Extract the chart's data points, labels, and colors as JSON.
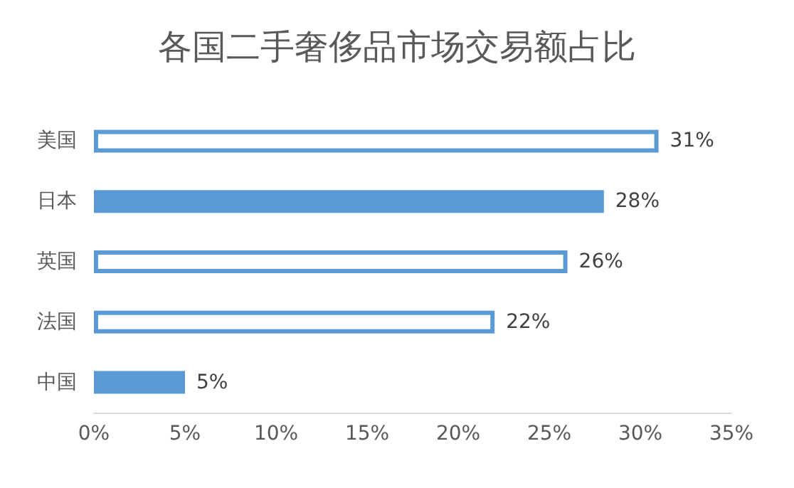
{
  "chart_data": {
    "type": "bar",
    "orientation": "horizontal",
    "title": "各国二手奢侈品市场交易额占比",
    "categories": [
      "美国",
      "日本",
      "英国",
      "法国",
      "中国"
    ],
    "values": [
      31,
      28,
      26,
      22,
      5
    ],
    "value_labels": [
      "31%",
      "28%",
      "26%",
      "22%",
      "5%"
    ],
    "color": "#5b9bd5",
    "colors": [
      "#ffffff",
      "#5b9bd5",
      "#ffffff",
      "#ffffff",
      "#5b9bd5"
    ],
    "xlim": [
      0,
      35
    ],
    "xticks": [
      {
        "value": 0,
        "label": "0%"
      },
      {
        "value": 5,
        "label": "5%"
      },
      {
        "value": 10,
        "label": "10%"
      },
      {
        "value": 15,
        "label": "15%"
      },
      {
        "value": 20,
        "label": "20%"
      },
      {
        "value": 25,
        "label": "25%"
      },
      {
        "value": 30,
        "label": "30%"
      },
      {
        "value": 35,
        "label": "35%"
      }
    ],
    "grid": false
  }
}
